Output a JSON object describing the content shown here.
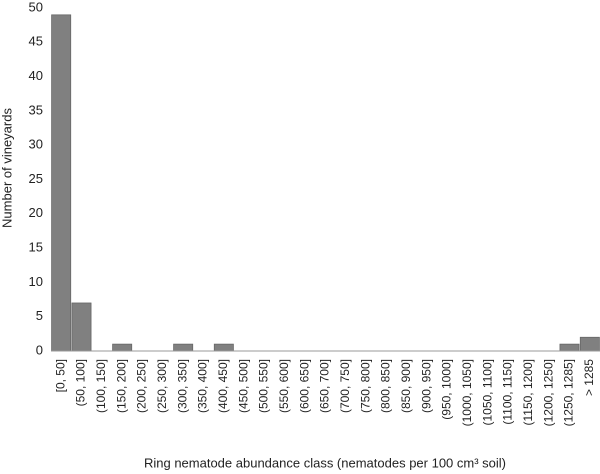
{
  "chart_data": {
    "type": "bar",
    "x_label": "Ring nematode abundance class (nematodes per 100 cm³ soil)",
    "y_label": "Number of vineyards",
    "categories": [
      "[0, 50]",
      "(50, 100]",
      "(100, 150]",
      "(150, 200]",
      "(200, 250]",
      "(250, 300]",
      "(300, 350]",
      "(350, 400]",
      "(400, 450]",
      "(450, 500]",
      "(500, 550]",
      "(550, 600]",
      "(600, 650]",
      "(650, 700]",
      "(700, 750]",
      "(750, 800]",
      "(800, 850]",
      "(850, 900]",
      "(900, 950]",
      "(950, 1000]",
      "(1000, 1050]",
      "(1050, 1100]",
      "(1100, 1150]",
      "(1150, 1200]",
      "(1200, 1250]",
      "(1250, 1285]",
      "> 1285"
    ],
    "values": [
      49,
      7,
      0,
      1,
      0,
      0,
      1,
      0,
      1,
      0,
      0,
      0,
      0,
      0,
      0,
      0,
      0,
      0,
      0,
      0,
      0,
      0,
      0,
      0,
      0,
      1,
      2
    ],
    "color": "#808080",
    "ylim": [
      0,
      50
    ],
    "yticks": [
      0,
      5,
      10,
      15,
      20,
      25,
      30,
      35,
      40,
      45,
      50
    ],
    "grid": false
  }
}
